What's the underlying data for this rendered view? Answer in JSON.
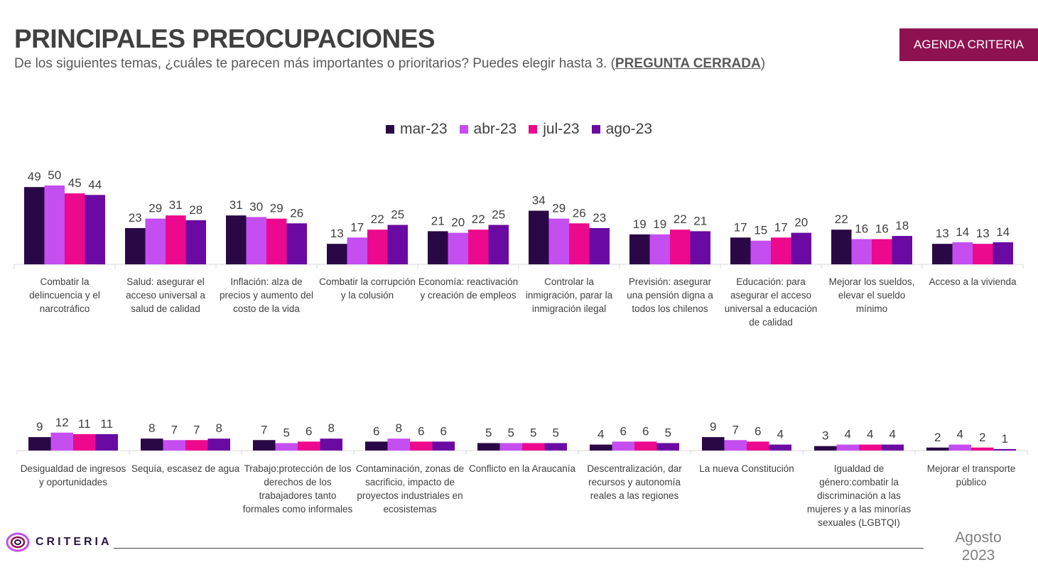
{
  "header": {
    "title": "PRINCIPALES PREOCUPACIONES",
    "subtitle_main": "De los siguientes temas, ¿cuáles te parecen más importantes o prioritarios? Puedes elegir hasta 3. (",
    "subtitle_emph": "PREGUNTA CERRADA",
    "subtitle_end": ")",
    "badge": "AGENDA CRITERIA"
  },
  "footer": {
    "logo_text": "CRITERIA",
    "date_month": "Agosto",
    "date_year": "2023"
  },
  "chart_data": [
    {
      "type": "bar",
      "title": "",
      "series": [
        {
          "name": "mar-23",
          "color": "#2a0845",
          "values": [
            49,
            23,
            31,
            13,
            21,
            34,
            19,
            17,
            22,
            13
          ]
        },
        {
          "name": "abr-23",
          "color": "#c44ef0",
          "values": [
            50,
            29,
            30,
            17,
            20,
            29,
            19,
            15,
            16,
            14
          ]
        },
        {
          "name": "jul-23",
          "color": "#ec098d",
          "values": [
            45,
            31,
            29,
            22,
            22,
            26,
            22,
            17,
            16,
            13
          ]
        },
        {
          "name": "ago-23",
          "color": "#6a0aa3",
          "values": [
            44,
            28,
            26,
            25,
            25,
            23,
            21,
            20,
            18,
            14
          ]
        }
      ],
      "categories": [
        "Combatir la delincuencia y el narcotráfico",
        "Salud: asegurar el acceso universal a salud de calidad",
        "Inflación: alza de precios y aumento del costo de la vida",
        "Combatir la corrupción y la colusión",
        "Economía: reactivación y creación de empleos",
        "Controlar la inmigración, parar la inmigración ilegal",
        "Previsión: asegurar una pensión digna a todos los chilenos",
        "Educación: para asegurar el acceso universal a educación de calidad",
        "Mejorar los sueldos, elevar el sueldo mínimo",
        "Acceso a la vivienda"
      ],
      "legend": "top-center"
    },
    {
      "type": "bar",
      "title": "",
      "series": [
        {
          "name": "mar-23",
          "color": "#2a0845",
          "values": [
            9,
            8,
            7,
            6,
            5,
            4,
            9,
            3,
            2
          ]
        },
        {
          "name": "abr-23",
          "color": "#c44ef0",
          "values": [
            12,
            7,
            5,
            8,
            5,
            6,
            7,
            4,
            4
          ]
        },
        {
          "name": "jul-23",
          "color": "#ec098d",
          "values": [
            11,
            7,
            6,
            6,
            5,
            6,
            6,
            4,
            2
          ]
        },
        {
          "name": "ago-23",
          "color": "#6a0aa3",
          "values": [
            11,
            8,
            8,
            6,
            5,
            5,
            4,
            4,
            1
          ]
        }
      ],
      "categories": [
        "Desigualdad de ingresos y oportunidades",
        "Sequía, escasez de agua",
        "Trabajo:protección de los derechos de los trabajadores tanto formales como informales",
        "Contaminación, zonas de sacrificio, impacto de proyectos industriales en ecosistemas",
        "Conflicto en la Araucanía",
        "Descentralización, dar recursos y autonomía reales a las regiones",
        "La nueva Constitución",
        "Igualdad de género:combatir la discriminación a las mujeres y a las minorías sexuales (LGBTQI)",
        "Mejorar el transporte público"
      ]
    }
  ]
}
